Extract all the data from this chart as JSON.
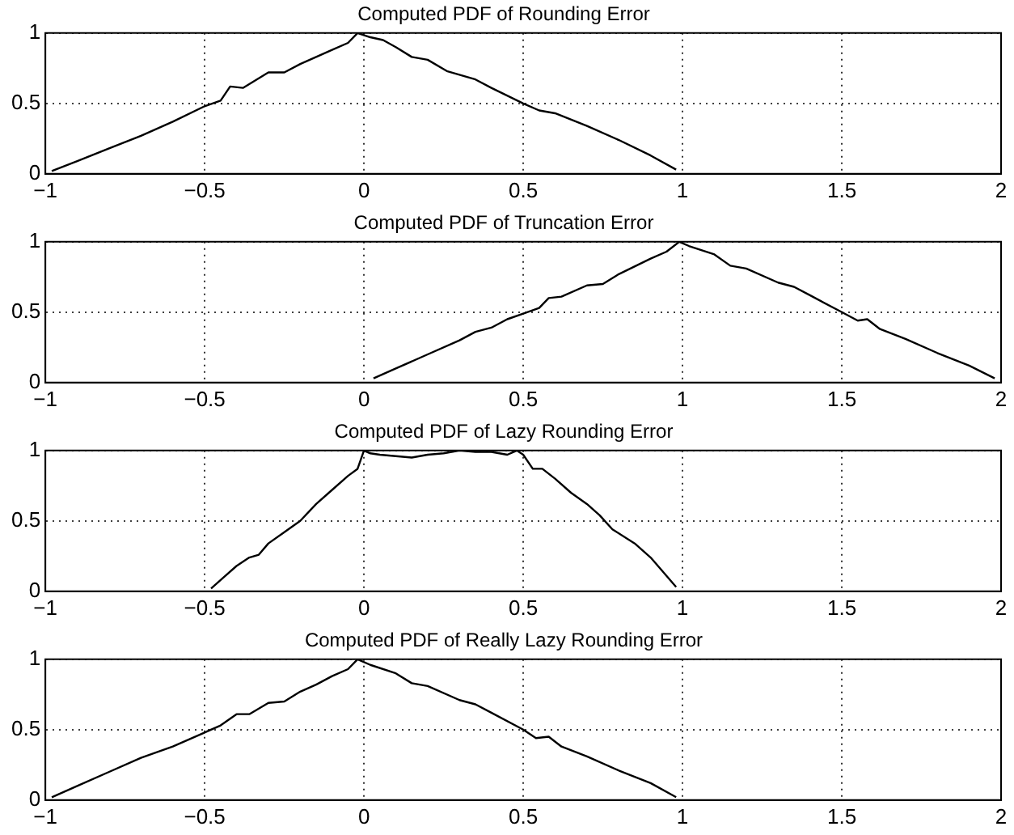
{
  "chart_data": [
    {
      "type": "line",
      "title": "Computed PDF of Rounding Error",
      "color": "#000000",
      "grid": true,
      "xlim": [
        -1,
        2
      ],
      "ylim": [
        0,
        1
      ],
      "xticks": [
        -1,
        -0.5,
        0,
        0.5,
        1,
        1.5,
        2
      ],
      "yticks": [
        0,
        0.5,
        1
      ],
      "x": [
        -0.98,
        -0.9,
        -0.8,
        -0.7,
        -0.6,
        -0.5,
        -0.45,
        -0.42,
        -0.38,
        -0.3,
        -0.25,
        -0.2,
        -0.1,
        -0.05,
        -0.02,
        0.02,
        0.06,
        0.1,
        0.15,
        0.2,
        0.26,
        0.35,
        0.4,
        0.5,
        0.55,
        0.6,
        0.7,
        0.8,
        0.9,
        0.98
      ],
      "values": [
        0.02,
        0.09,
        0.18,
        0.27,
        0.37,
        0.48,
        0.52,
        0.62,
        0.61,
        0.72,
        0.72,
        0.78,
        0.88,
        0.93,
        1.0,
        0.97,
        0.95,
        0.9,
        0.83,
        0.81,
        0.73,
        0.67,
        0.61,
        0.5,
        0.45,
        0.43,
        0.34,
        0.24,
        0.13,
        0.03
      ]
    },
    {
      "type": "line",
      "title": "Computed PDF of Truncation Error",
      "color": "#000000",
      "grid": true,
      "xlim": [
        -1,
        2
      ],
      "ylim": [
        0,
        1
      ],
      "xticks": [
        -1,
        -0.5,
        0,
        0.5,
        1,
        1.5,
        2
      ],
      "yticks": [
        0,
        0.5,
        1
      ],
      "x": [
        0.03,
        0.1,
        0.2,
        0.3,
        0.35,
        0.4,
        0.45,
        0.5,
        0.55,
        0.58,
        0.62,
        0.7,
        0.75,
        0.8,
        0.9,
        0.95,
        0.99,
        1.02,
        1.1,
        1.15,
        1.2,
        1.3,
        1.35,
        1.4,
        1.5,
        1.55,
        1.58,
        1.62,
        1.7,
        1.8,
        1.9,
        1.98
      ],
      "values": [
        0.03,
        0.1,
        0.2,
        0.3,
        0.36,
        0.39,
        0.45,
        0.49,
        0.53,
        0.6,
        0.61,
        0.69,
        0.7,
        0.77,
        0.88,
        0.93,
        1.0,
        0.97,
        0.91,
        0.83,
        0.81,
        0.71,
        0.68,
        0.62,
        0.5,
        0.44,
        0.45,
        0.38,
        0.31,
        0.21,
        0.12,
        0.03
      ]
    },
    {
      "type": "line",
      "title": "Computed PDF of Lazy Rounding Error",
      "color": "#000000",
      "grid": true,
      "xlim": [
        -1,
        2
      ],
      "ylim": [
        0,
        1
      ],
      "xticks": [
        -1,
        -0.5,
        0,
        0.5,
        1,
        1.5,
        2
      ],
      "yticks": [
        0,
        0.5,
        1
      ],
      "x": [
        -0.48,
        -0.44,
        -0.4,
        -0.36,
        -0.33,
        -0.3,
        -0.25,
        -0.2,
        -0.15,
        -0.1,
        -0.05,
        -0.02,
        0,
        0.02,
        0.05,
        0.1,
        0.15,
        0.2,
        0.25,
        0.3,
        0.35,
        0.4,
        0.45,
        0.48,
        0.5,
        0.53,
        0.56,
        0.6,
        0.65,
        0.7,
        0.74,
        0.78,
        0.85,
        0.9,
        0.98
      ],
      "values": [
        0.02,
        0.1,
        0.18,
        0.24,
        0.26,
        0.34,
        0.42,
        0.5,
        0.62,
        0.72,
        0.82,
        0.87,
        1.0,
        0.98,
        0.97,
        0.96,
        0.95,
        0.97,
        0.98,
        1.0,
        0.99,
        0.99,
        0.97,
        1.0,
        0.97,
        0.87,
        0.87,
        0.8,
        0.7,
        0.62,
        0.54,
        0.44,
        0.34,
        0.24,
        0.03
      ]
    },
    {
      "type": "line",
      "title": "Computed PDF of Really Lazy Rounding Error",
      "color": "#000000",
      "grid": true,
      "xlim": [
        -1,
        2
      ],
      "ylim": [
        0,
        1
      ],
      "xticks": [
        -1,
        -0.5,
        0,
        0.5,
        1,
        1.5,
        2
      ],
      "yticks": [
        0,
        0.5,
        1
      ],
      "x": [
        -0.98,
        -0.9,
        -0.8,
        -0.7,
        -0.6,
        -0.5,
        -0.45,
        -0.4,
        -0.36,
        -0.3,
        -0.25,
        -0.2,
        -0.15,
        -0.1,
        -0.05,
        -0.02,
        0.02,
        0.1,
        0.15,
        0.2,
        0.3,
        0.35,
        0.4,
        0.5,
        0.54,
        0.58,
        0.62,
        0.7,
        0.8,
        0.9,
        0.98
      ],
      "values": [
        0.02,
        0.1,
        0.2,
        0.3,
        0.38,
        0.48,
        0.53,
        0.61,
        0.61,
        0.69,
        0.7,
        0.77,
        0.82,
        0.88,
        0.93,
        1.0,
        0.96,
        0.9,
        0.83,
        0.81,
        0.71,
        0.68,
        0.62,
        0.5,
        0.44,
        0.45,
        0.38,
        0.31,
        0.21,
        0.12,
        0.02
      ]
    }
  ]
}
